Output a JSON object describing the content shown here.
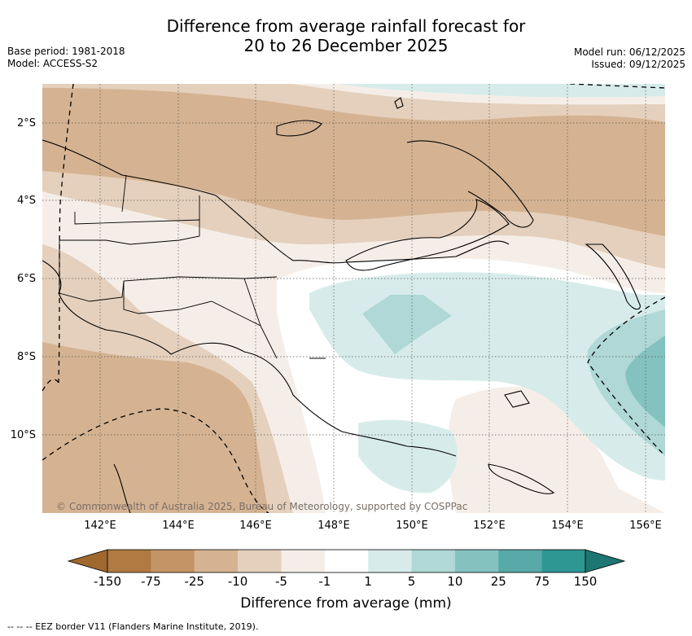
{
  "title_line1": "Difference from average rainfall forecast for",
  "title_line2": "20 to 26 December 2025",
  "meta_left": {
    "base_period": "Base period: 1981-2018",
    "model": "Model: ACCESS-S2"
  },
  "meta_right": {
    "model_run": "Model run: 06/12/2025",
    "issued": "Issued: 09/12/2025"
  },
  "map": {
    "lon_labels": [
      "142°E",
      "144°E",
      "146°E",
      "148°E",
      "150°E",
      "152°E",
      "154°E",
      "156°E"
    ],
    "lat_labels": [
      "2°S",
      "4°S",
      "6°S",
      "8°S",
      "10°S"
    ],
    "copyright": "© Commonwealth of Australia 2025, Bureau of Meteorology, supported by COSPPac"
  },
  "colorbar": {
    "ticks": [
      "-150",
      "-75",
      "-25",
      "-10",
      "-5",
      "-1",
      "1",
      "5",
      "10",
      "25",
      "75",
      "150"
    ],
    "colors": [
      "#a0682f",
      "#b07a42",
      "#c49466",
      "#d5b392",
      "#e5d0bd",
      "#f5eee8",
      "#ffffff",
      "#d7ecea",
      "#afd8d6",
      "#84c2c0",
      "#58aaa8",
      "#2e9794",
      "#1e7672"
    ],
    "label": "Difference from average (mm)"
  },
  "footer": "--  --  -- EEZ border V11 (Flanders Marine Institute, 2019)."
}
